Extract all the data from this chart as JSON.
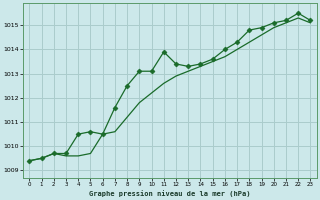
{
  "title": "Graphe pression niveau de la mer (hPa)",
  "bg_color": "#cce8ea",
  "grid_color": "#aacccc",
  "line_color": "#1a6b2a",
  "spine_color": "#5a9a6a",
  "x_ticks": [
    0,
    1,
    2,
    3,
    4,
    5,
    6,
    7,
    8,
    9,
    10,
    11,
    12,
    13,
    14,
    15,
    16,
    17,
    18,
    19,
    20,
    21,
    22,
    23
  ],
  "y_ticks": [
    1009,
    1010,
    1011,
    1012,
    1013,
    1014,
    1015
  ],
  "ylim": [
    1008.7,
    1015.9
  ],
  "xlim": [
    -0.5,
    23.5
  ],
  "series1_x": [
    0,
    1,
    2,
    3,
    4,
    5,
    6,
    7,
    8,
    9,
    10,
    11,
    12,
    13,
    14,
    15,
    16,
    17,
    18,
    19,
    20,
    21,
    22,
    23
  ],
  "series1_y": [
    1009.4,
    1009.5,
    1009.7,
    1009.6,
    1009.6,
    1009.7,
    1010.5,
    1010.6,
    1011.2,
    1011.8,
    1012.2,
    1012.6,
    1012.9,
    1013.1,
    1013.3,
    1013.5,
    1013.7,
    1014.0,
    1014.3,
    1014.6,
    1014.9,
    1015.1,
    1015.3,
    1015.1
  ],
  "series2_x": [
    0,
    1,
    2,
    3,
    4,
    5,
    6,
    7,
    8,
    9,
    10,
    11,
    12,
    13,
    14,
    15,
    16,
    17,
    18,
    19,
    20,
    21,
    22,
    23
  ],
  "series2_y": [
    1009.4,
    1009.5,
    1009.7,
    1009.7,
    1010.5,
    1010.6,
    1010.5,
    1011.6,
    1012.5,
    1013.1,
    1013.1,
    1013.9,
    1013.4,
    1013.3,
    1013.4,
    1013.6,
    1014.0,
    1014.3,
    1014.8,
    1014.9,
    1015.1,
    1015.2,
    1015.5,
    1015.2
  ]
}
